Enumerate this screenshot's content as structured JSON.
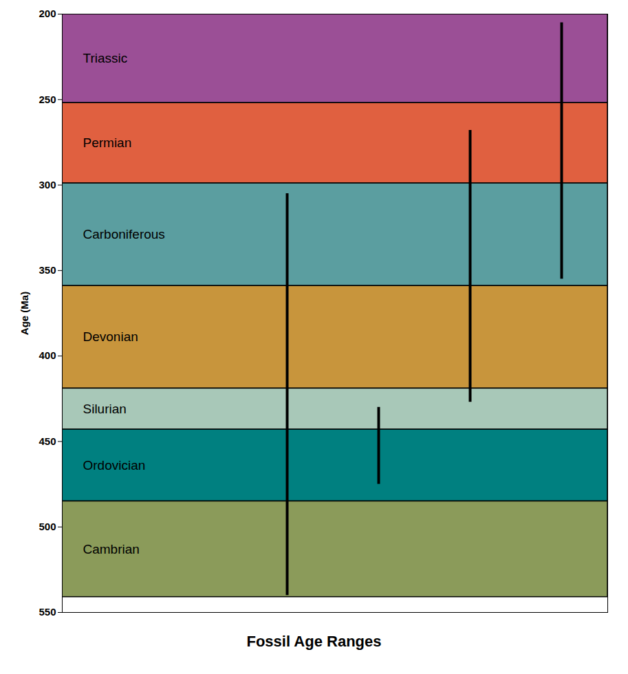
{
  "chart_data": {
    "type": "range",
    "title": "Fossil Age Ranges",
    "ylabel": "Age (Ma)",
    "categories": [
      null,
      null,
      null,
      null
    ],
    "values": [
      [
        305,
        540
      ],
      [
        430,
        475
      ],
      [
        268,
        427
      ],
      [
        205,
        355
      ]
    ],
    "color": "#000000",
    "bands": [
      {
        "label": "Triassic",
        "start": 200,
        "end": 252,
        "color": "#9B4F96"
      },
      {
        "label": "Permian",
        "start": 252,
        "end": 299,
        "color": "#E06040"
      },
      {
        "label": "Carboniferous",
        "start": 299,
        "end": 359,
        "color": "#5B9EA0"
      },
      {
        "label": "Devonian",
        "start": 359,
        "end": 419,
        "color": "#C8953C"
      },
      {
        "label": "Silurian",
        "start": 419,
        "end": 443,
        "color": "#A8C8B8"
      },
      {
        "label": "Ordovician",
        "start": 443,
        "end": 485,
        "color": "#008080"
      },
      {
        "label": "Cambrian",
        "start": 485,
        "end": 541,
        "color": "#8B9B5A"
      }
    ],
    "ylim": [
      550,
      200
    ],
    "yticks": [
      200,
      250,
      300,
      350,
      400,
      450,
      500,
      550
    ],
    "grid": false,
    "tick_labels": "y"
  }
}
